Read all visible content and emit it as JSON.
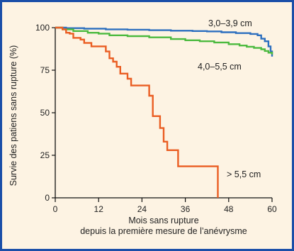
{
  "chart_data": {
    "type": "line",
    "step": true,
    "title": "",
    "xlabel_lines": [
      "Mois sans rupture",
      "depuis la première mesure de l’anévrysme"
    ],
    "ylabel": "Survie des patiens sans rupture (%)",
    "xlim": [
      0,
      60
    ],
    "ylim": [
      0,
      100
    ],
    "xticks": [
      0,
      12,
      24,
      36,
      48,
      60
    ],
    "xtick_labels": [
      "0",
      "12",
      "24",
      "36",
      "48",
      "60"
    ],
    "yticks": [
      0,
      25,
      50,
      75,
      100
    ],
    "ytick_labels": [
      "0",
      "25",
      "50",
      "75",
      "100"
    ],
    "grid": false,
    "background": "#fdf3e3",
    "frame_color": "#1a4ea8",
    "series": [
      {
        "name": "3,0–3,9 cm",
        "color": "#2d6fbf",
        "points": [
          [
            0,
            100
          ],
          [
            3,
            99.7
          ],
          [
            8,
            99.4
          ],
          [
            14,
            99
          ],
          [
            20,
            98.8
          ],
          [
            26,
            98.5
          ],
          [
            32,
            98.2
          ],
          [
            38,
            98
          ],
          [
            42,
            97.8
          ],
          [
            46,
            97.3
          ],
          [
            50,
            96.8
          ],
          [
            54,
            96.3
          ],
          [
            56,
            95.5
          ],
          [
            57,
            93.5
          ],
          [
            58,
            92
          ],
          [
            59,
            89
          ],
          [
            59.6,
            86
          ],
          [
            60,
            83
          ]
        ]
      },
      {
        "name": "4,0–5,5 cm",
        "color": "#4cba3f",
        "points": [
          [
            0,
            100
          ],
          [
            2,
            99
          ],
          [
            5,
            98
          ],
          [
            9,
            97
          ],
          [
            12,
            96.5
          ],
          [
            15,
            95.5
          ],
          [
            20,
            95
          ],
          [
            26,
            94.3
          ],
          [
            32,
            93.3
          ],
          [
            36,
            92.6
          ],
          [
            40,
            92
          ],
          [
            44,
            91.3
          ],
          [
            48,
            90.3
          ],
          [
            51,
            89.5
          ],
          [
            53,
            88.8
          ],
          [
            55,
            88.1
          ],
          [
            57,
            87.3
          ],
          [
            58,
            86.3
          ],
          [
            59,
            85.3
          ],
          [
            60,
            84.3
          ]
        ]
      },
      {
        "name": "> 5,5 cm",
        "color": "#ea5d22",
        "points": [
          [
            0,
            100
          ],
          [
            2,
            99
          ],
          [
            3,
            97
          ],
          [
            4,
            96.5
          ],
          [
            5,
            94
          ],
          [
            7,
            93
          ],
          [
            8,
            91
          ],
          [
            10,
            89
          ],
          [
            14,
            86
          ],
          [
            15,
            82
          ],
          [
            16,
            80
          ],
          [
            17,
            77
          ],
          [
            18,
            73
          ],
          [
            20,
            70
          ],
          [
            21,
            66
          ],
          [
            26,
            60
          ],
          [
            27,
            48
          ],
          [
            29,
            41
          ],
          [
            30,
            33
          ],
          [
            31,
            28
          ],
          [
            34,
            18.5
          ],
          [
            45,
            18.5
          ],
          [
            45,
            0
          ]
        ]
      }
    ]
  }
}
